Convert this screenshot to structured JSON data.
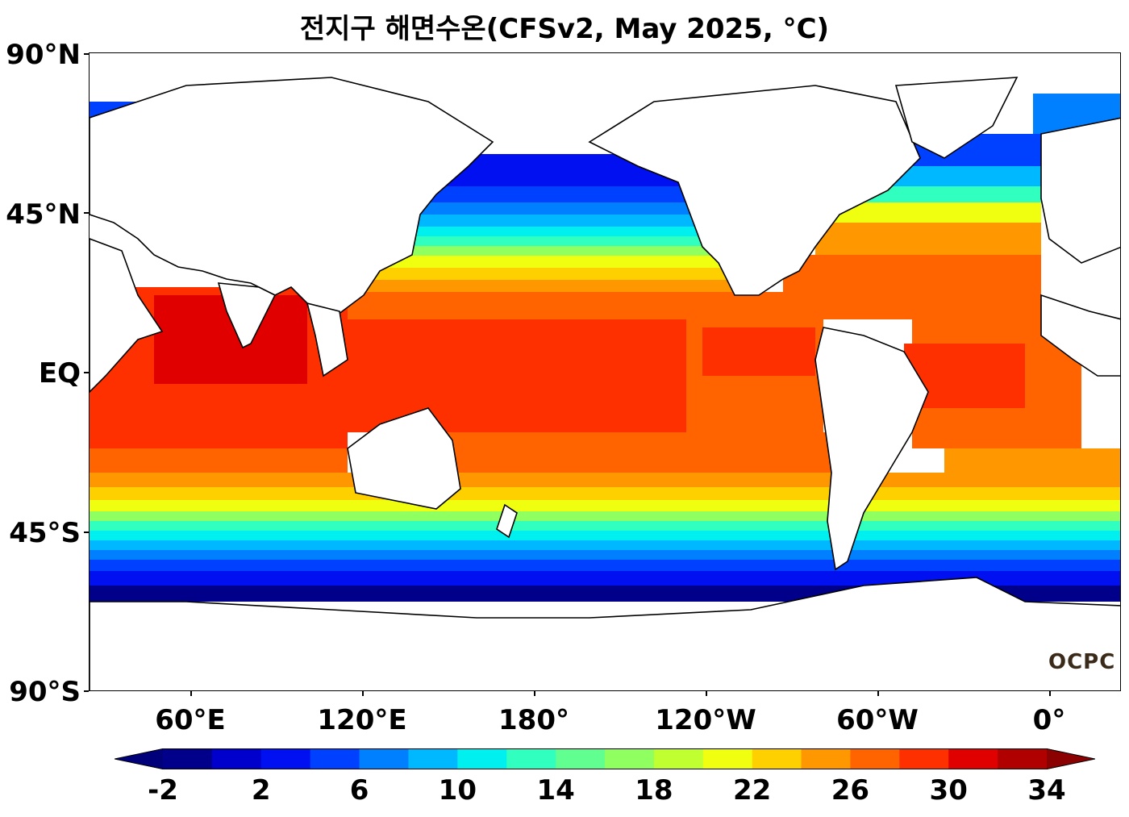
{
  "title": "전지구 해면수온(CFSv2, May 2025, °C)",
  "logo_text": "OCPC",
  "map": {
    "lat_labels": [
      "90°N",
      "45°N",
      "EQ",
      "45°S",
      "90°S"
    ],
    "lon_labels": [
      "60°E",
      "120°E",
      "180°",
      "120°W",
      "60°W",
      "0°"
    ],
    "central_longitude": "center near 180°"
  },
  "colorbar": {
    "ticks": [
      "-2",
      "2",
      "6",
      "10",
      "14",
      "18",
      "22",
      "26",
      "30",
      "34"
    ],
    "min": -2,
    "max": 34,
    "step": 2,
    "extend": "both",
    "colors": [
      "#00008b",
      "#0000cd",
      "#0010f0",
      "#0040ff",
      "#0080ff",
      "#00b8ff",
      "#00f0f0",
      "#30ffc0",
      "#60ff90",
      "#90ff60",
      "#c0ff30",
      "#f0ff10",
      "#ffd000",
      "#ff9800",
      "#ff6400",
      "#ff3000",
      "#e00000",
      "#b00000"
    ],
    "under_color": "#00007a",
    "over_color": "#8b0000"
  }
}
